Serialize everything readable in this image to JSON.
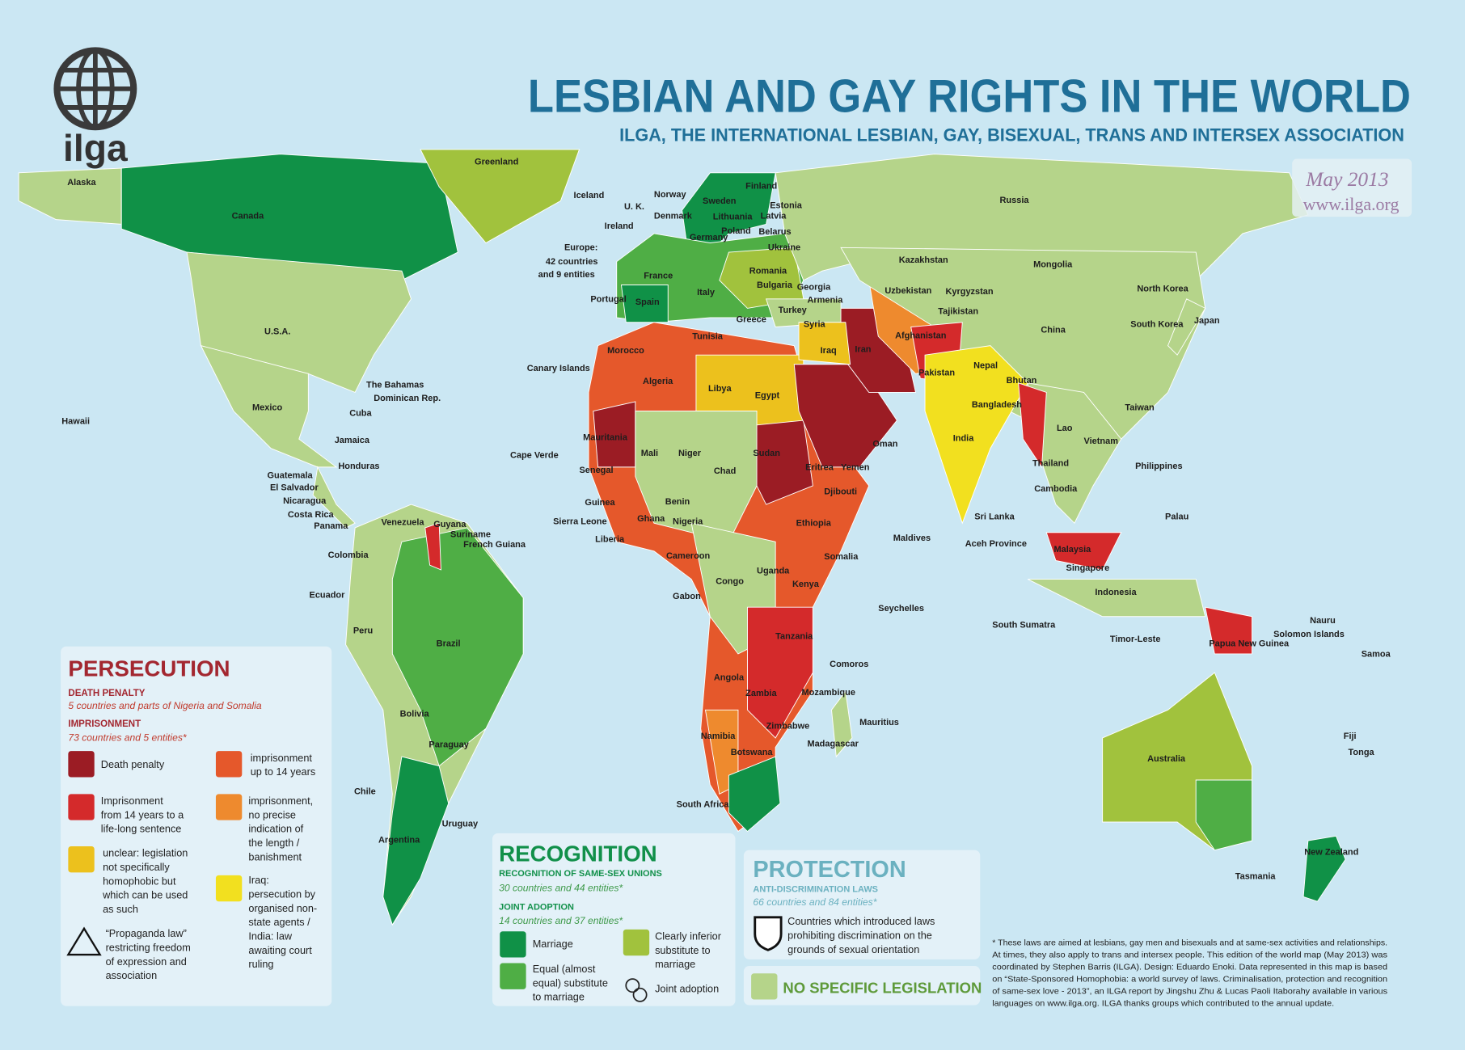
{
  "header": {
    "logo": "ilga",
    "title": "LESBIAN AND GAY RIGHTS IN THE WORLD",
    "subtitle": "ILGA, THE INTERNATIONAL LESBIAN, GAY, BISEXUAL, TRANS AND INTERSEX ASSOCIATION",
    "date": "May 2013",
    "url": "www.ilga.org"
  },
  "map": {
    "labels": [
      "Alaska",
      "Canada",
      "Greenland",
      "Iceland",
      "Norway",
      "Sweden",
      "Finland",
      "U. K.",
      "Ireland",
      "Denmark",
      "Estonia",
      "Latvia",
      "Lithuania",
      "Poland",
      "Belarus",
      "Germany",
      "Ukraine",
      "France",
      "Portugal",
      "Spain",
      "Italy",
      "Romania",
      "Bulgaria",
      "Greece",
      "Turkey",
      "Georgia",
      "Armenia",
      "Kazakhstan",
      "Mongolia",
      "Russia",
      "Uzbekistan",
      "Kyrgyzstan",
      "Tajikistan",
      "Afghanistan",
      "Pakistan",
      "Iran",
      "Iraq",
      "Syria",
      "China",
      "North Korea",
      "South Korea",
      "Japan",
      "Nepal",
      "Bhutan",
      "Bangladesh",
      "India",
      "Taiwan",
      "Vietnam",
      "Lao",
      "Thailand",
      "Cambodia",
      "Philippines",
      "Sri Lanka",
      "Maldives",
      "Malaysia",
      "Singapore",
      "Indonesia",
      "Palau",
      "Morocco",
      "Algeria",
      "Tunisia",
      "Libya",
      "Egypt",
      "Mauritania",
      "Mali",
      "Niger",
      "Chad",
      "Sudan",
      "Eritrea",
      "Yemen",
      "Oman",
      "Djibouti",
      "Ethiopia",
      "Somalia",
      "Kenya",
      "Uganda",
      "Tanzania",
      "Nigeria",
      "Cameroon",
      "Gabon",
      "Congo",
      "Angola",
      "Zambia",
      "Mozambique",
      "Zimbabwe",
      "Namibia",
      "Botswana",
      "Madagascar",
      "South Africa",
      "Senegal",
      "Guinea",
      "Sierra Leone",
      "Liberia",
      "Ghana",
      "Benin",
      "Cape Verde",
      "Canary Islands",
      "U.S.A.",
      "Mexico",
      "Cuba",
      "Jamaica",
      "Honduras",
      "Guatemala",
      "El Salvador",
      "Nicaragua",
      "Costa Rica",
      "Panama",
      "Venezuela",
      "Colombia",
      "Ecuador",
      "Peru",
      "Guyana",
      "Suriname",
      "French Guiana",
      "Brazil",
      "Bolivia",
      "Paraguay",
      "Chile",
      "Argentina",
      "Uruguay",
      "Hawaii",
      "Australia",
      "New Zealand",
      "Papua New Guinea",
      "Solomon Islands",
      "Nauru",
      "Samoa",
      "Tonga",
      "Fiji",
      "Seychelles",
      "Mauritius",
      "Comoros",
      "Timor-Leste",
      "Tasmania",
      "South Sumatra",
      "Aceh Province",
      "The Bahamas",
      "Dominican Rep.",
      "Europe:",
      "42 countries",
      "and 9 entities"
    ]
  },
  "legend": {
    "persecution": {
      "title": "PERSECUTION",
      "death_penalty": "DEATH PENALTY",
      "death_penalty_note": "5 countries and parts of Nigeria and Somalia",
      "imprisonment": "IMPRISONMENT",
      "imprisonment_note": "73 countries and 5 entities*",
      "items": [
        {
          "color": "#9b1c24",
          "lines": [
            "Death penalty"
          ]
        },
        {
          "color": "#d42a2b",
          "lines": [
            "Imprisonment",
            "from 14 years to a",
            "life-long sentence"
          ]
        },
        {
          "color": "#ecc11d",
          "lines": [
            "unclear: legislation",
            "not specifically",
            "homophobic but",
            "which can be used",
            "as such"
          ]
        },
        {
          "lines": [
            "“Propaganda law”",
            "restricting freedom",
            "of expression and",
            "association"
          ]
        },
        {
          "color": "#e5582b",
          "lines": [
            "imprisonment",
            "up to 14 years"
          ]
        },
        {
          "color": "#ee8a2e",
          "lines": [
            "imprisonment,",
            "no precise",
            "indication of",
            "the length /",
            "banishment"
          ]
        },
        {
          "color": "#f2e01f",
          "lines": [
            "Iraq:",
            "persecution by",
            "organised non-",
            "state agents /",
            "India: law",
            "awaiting court",
            "ruling"
          ]
        }
      ]
    },
    "recognition": {
      "title": "RECOGNITION",
      "unions": "RECOGNITION OF SAME-SEX UNIONS",
      "unions_note": "30 countries and 44 entities*",
      "adoption": "JOINT ADOPTION",
      "adoption_note": "14 countries and 37 entities*",
      "items": [
        {
          "color": "#109147",
          "lines": [
            "Marriage"
          ]
        },
        {
          "color": "#4fae45",
          "lines": [
            "Equal (almost",
            "equal) substitute",
            "to marriage"
          ]
        },
        {
          "color": "#a1c23d",
          "lines": [
            "Clearly inferior",
            "substitute to",
            "marriage"
          ]
        },
        {
          "lines": [
            "Joint adoption"
          ]
        }
      ]
    },
    "protection": {
      "title": "PROTECTION",
      "subtitle": "ANTI-DISCRIMINATION LAWS",
      "note": "66 countries and 84 entities*",
      "lines": [
        "Countries which introduced laws",
        "prohibiting discrimination on the",
        "grounds of sexual orientation"
      ]
    },
    "none": {
      "color": "#b5d48a",
      "label": "NO SPECIFIC LEGISLATION"
    }
  },
  "footnote": [
    "* These laws are aimed at lesbians, gay men and bisexuals and at same-sex activities and relationships.",
    "At times, they also apply to trans and intersex people. This edition of the world map (May 2013) was",
    "coordinated by Stephen Barris (ILGA). Design: Eduardo Enoki. Data represented in this map is based",
    "on “State-Sponsored Homophobia: a world survey of laws. Criminalisation, protection and recognition",
    "of same-sex love - 2013”, an ILGA report by Jingshu Zhu & Lucas Paoli Itaborahy available in various",
    "languages on www.ilga.org. ILGA thanks groups which contributed to the annual update."
  ]
}
